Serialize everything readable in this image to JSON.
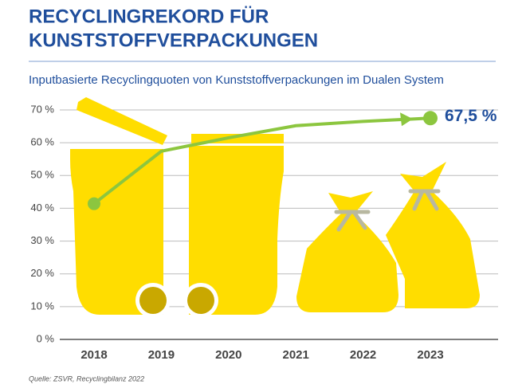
{
  "chart_data": {
    "type": "line",
    "title": [
      "RECYCLINGREKORD FÜR",
      "KUNSTSTOFFVERPACKUNGEN"
    ],
    "subtitle": "Inputbasierte Recyclingquoten von Kunststoffverpackungen im Dualen System",
    "source": "Quelle: ZSVR, Recyclingbilanz 2022",
    "categories": [
      "2018",
      "2019",
      "2020",
      "2021",
      "2022",
      "2023"
    ],
    "series": [
      {
        "name": "Recyclingquote",
        "color": "#8cc63f",
        "values": [
          41.4,
          57.4,
          61.5,
          65.2,
          66.5,
          67.5
        ],
        "value_labels": [
          null,
          null,
          null,
          null,
          null,
          "67,5 %"
        ]
      }
    ],
    "ylim": [
      0,
      70
    ],
    "yticks": [
      {
        "value": 0,
        "label": "0 %"
      },
      {
        "value": 10,
        "label": "10 %"
      },
      {
        "value": 20,
        "label": "20 %"
      },
      {
        "value": 30,
        "label": "30 %"
      },
      {
        "value": 40,
        "label": "40 %"
      },
      {
        "value": 50,
        "label": "50 %"
      },
      {
        "value": 60,
        "label": "60 %"
      },
      {
        "value": 70,
        "label": "70 %"
      }
    ],
    "grid": true
  }
}
